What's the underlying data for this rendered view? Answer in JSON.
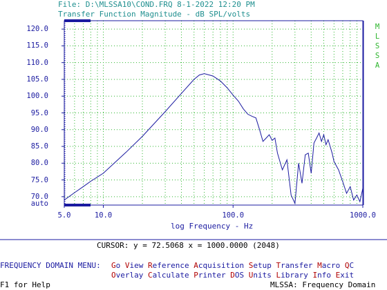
{
  "header": {
    "file_line": "File: D:\\MLSSA10\\COND.FRQ 8-1-2022 12:20 PM",
    "subtitle": "Transfer Function Magnitude - dB SPL/volts"
  },
  "side_brand": "MLSSA",
  "chart_data": {
    "type": "line",
    "xlabel": "log Frequency - Hz",
    "x_scale": "log",
    "xlim": [
      5.0,
      1000.0
    ],
    "x_tick_labels": [
      "5.0",
      "10.0",
      "100.0",
      "1000.0"
    ],
    "y_tick_labels": [
      "120.0",
      "115.0",
      "110.0",
      "105.0",
      "100.0",
      "95.0",
      "90.0",
      "85.0",
      "80.0",
      "75.0",
      "70.0",
      "auto"
    ],
    "ylim": [
      67.5,
      122.5
    ],
    "grid": true,
    "series": [
      {
        "color": "#1a1aa0",
        "x": [
          5,
          6,
          7,
          8,
          10,
          15,
          20,
          30,
          40,
          50,
          55,
          60,
          70,
          80,
          90,
          100,
          110,
          120,
          130,
          140,
          150,
          160,
          170,
          180,
          190,
          200,
          210,
          220,
          240,
          260,
          280,
          300,
          320,
          340,
          360,
          380,
          400,
          420,
          440,
          460,
          480,
          500,
          520,
          540,
          560,
          580,
          600,
          650,
          700,
          750,
          800,
          850,
          900,
          950,
          1000
        ],
        "y": [
          69.0,
          71.2,
          73.0,
          74.6,
          77.0,
          83.3,
          88.0,
          95.4,
          100.8,
          105.0,
          106.3,
          106.7,
          106.0,
          104.5,
          102.5,
          100.3,
          98.5,
          96.2,
          94.6,
          94.0,
          93.5,
          90.0,
          86.5,
          87.5,
          88.5,
          86.8,
          87.5,
          83.0,
          78.0,
          81.0,
          70.5,
          68.0,
          80.0,
          74.0,
          82.5,
          83.0,
          77.0,
          86.0,
          87.5,
          89.0,
          86.5,
          88.5,
          85.5,
          87.0,
          85.0,
          83.0,
          80.5,
          78.0,
          74.5,
          71.0,
          73.0,
          69.0,
          70.5,
          68.5,
          72.5
        ]
      }
    ]
  },
  "cursor": {
    "text": "CURSOR: y = 72.5068 x = 1000.0000 (2048)"
  },
  "menu": {
    "title": "FREQUENCY DOMAIN MENU:",
    "row1": [
      {
        "hot": "G",
        "rest": "o"
      },
      {
        "hot": "V",
        "rest": "iew"
      },
      {
        "hot": "R",
        "rest": "eference"
      },
      {
        "hot": "A",
        "rest": "cquisition"
      },
      {
        "hot": "S",
        "rest": "etup"
      },
      {
        "hot": "T",
        "rest": "ransfer"
      },
      {
        "hot": "M",
        "rest": "acro"
      },
      {
        "hot": "Q",
        "rest": "C"
      }
    ],
    "row2": [
      {
        "hot": "O",
        "rest": "verlay"
      },
      {
        "hot": "C",
        "rest": "alculate"
      },
      {
        "hot": "P",
        "rest": "rinter"
      },
      {
        "hot": "D",
        "rest": "OS"
      },
      {
        "hot": "U",
        "rest": "nits"
      },
      {
        "hot": "L",
        "rest": "ibrary"
      },
      {
        "hot": "I",
        "rest": "nfo"
      },
      {
        "hot": "E",
        "rest": "xit"
      }
    ]
  },
  "status": {
    "help": "F1 for Help",
    "mode": "MLSSA: Frequency Domain"
  }
}
